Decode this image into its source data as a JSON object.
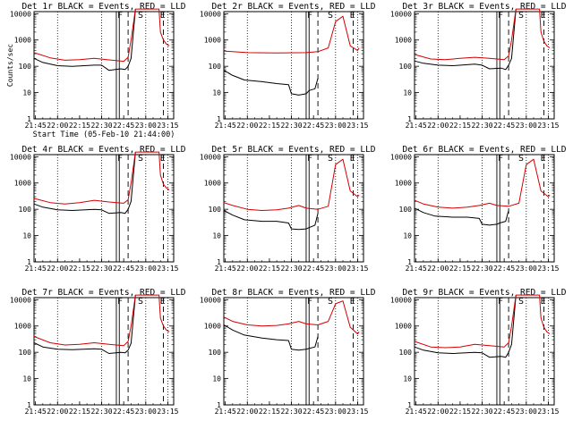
{
  "chart_data": [
    {
      "type": "line",
      "title": "Det 1r BLACK = Events, RED = LLD",
      "xlabel": "Start Time (05-Feb-10 21:44:00)",
      "ylabel": "Counts/sec",
      "x_ticks": [
        "21:45",
        "22:00",
        "22:15",
        "22:30",
        "22:45",
        "23:00",
        "23:15"
      ],
      "y_ticks": [
        "1",
        "10",
        "100",
        "1000",
        "10000"
      ],
      "y_scale": "log",
      "ylim": [
        1,
        12000
      ],
      "markers": [
        "F",
        "S",
        "E"
      ],
      "series": [
        {
          "color": "#000000",
          "x": [
            "21:44",
            "21:50",
            "22:00",
            "22:10",
            "22:25",
            "22:30",
            "22:35",
            "22:43",
            "22:46",
            "22:48",
            "22:50",
            "22:53"
          ],
          "y": [
            200,
            140,
            105,
            100,
            110,
            110,
            70,
            80,
            75,
            100,
            200,
            15000
          ]
        },
        {
          "color": "#d40000",
          "x": [
            "21:44",
            "21:55",
            "22:05",
            "22:15",
            "22:25",
            "22:35",
            "22:45",
            "22:48",
            "22:50",
            "22:53",
            "23:09",
            "23:10",
            "23:12",
            "23:14",
            "23:16"
          ],
          "y": [
            330,
            210,
            170,
            180,
            200,
            175,
            155,
            220,
            1000,
            15000,
            15000,
            2000,
            1000,
            700,
            600
          ]
        }
      ]
    },
    {
      "type": "line",
      "title": "Det 2r BLACK = Events, RED = LLD",
      "xlabel": "",
      "ylabel": "",
      "x_ticks": [
        "21:45",
        "22:00",
        "22:15",
        "22:30",
        "22:45",
        "23:00",
        "23:15"
      ],
      "y_ticks": [
        "1",
        "10",
        "100",
        "1000",
        "10000"
      ],
      "y_scale": "log",
      "ylim": [
        1,
        12000
      ],
      "markers": [
        "F",
        "S",
        "E"
      ],
      "series": [
        {
          "color": "#000000",
          "x": [
            "21:44",
            "21:50",
            "21:58",
            "22:10",
            "22:20",
            "22:28",
            "22:30",
            "22:35",
            "22:40",
            "22:42",
            "22:46",
            "22:48"
          ],
          "y": [
            70,
            45,
            30,
            26,
            22,
            20,
            9,
            8,
            9,
            12,
            14,
            35
          ]
        },
        {
          "color": "#d40000",
          "x": [
            "21:44",
            "22:00",
            "22:20",
            "22:40",
            "22:48",
            "22:55",
            "23:00",
            "23:05",
            "23:10",
            "23:15",
            "23:16"
          ],
          "y": [
            380,
            330,
            320,
            330,
            360,
            500,
            5000,
            8000,
            600,
            400,
            500
          ]
        }
      ]
    },
    {
      "type": "line",
      "title": "Det 3r BLACK = Events, RED = LLD",
      "xlabel": "",
      "ylabel": "",
      "x_ticks": [
        "21:45",
        "22:00",
        "22:15",
        "22:30",
        "22:45",
        "23:00",
        "23:15"
      ],
      "y_ticks": [
        "1",
        "10",
        "100",
        "1000",
        "10000"
      ],
      "y_scale": "log",
      "ylim": [
        1,
        12000
      ],
      "markers": [
        "F",
        "S",
        "E"
      ],
      "series": [
        {
          "color": "#000000",
          "x": [
            "21:44",
            "21:50",
            "22:00",
            "22:10",
            "22:25",
            "22:30",
            "22:35",
            "22:43",
            "22:46",
            "22:48",
            "22:50",
            "22:53"
          ],
          "y": [
            160,
            130,
            110,
            105,
            120,
            110,
            80,
            85,
            75,
            110,
            200,
            15000
          ]
        },
        {
          "color": "#d40000",
          "x": [
            "21:44",
            "21:55",
            "22:05",
            "22:15",
            "22:25",
            "22:35",
            "22:45",
            "22:48",
            "22:50",
            "22:53",
            "23:09",
            "23:10",
            "23:12",
            "23:14",
            "23:16"
          ],
          "y": [
            280,
            190,
            180,
            200,
            220,
            200,
            180,
            250,
            1000,
            15000,
            15000,
            2000,
            900,
            600,
            500
          ]
        }
      ]
    },
    {
      "type": "line",
      "title": "Det 4r BLACK = Events, RED = LLD",
      "xlabel": "",
      "ylabel": "",
      "x_ticks": [
        "21:45",
        "22:00",
        "22:15",
        "22:30",
        "22:45",
        "23:00",
        "23:15"
      ],
      "y_ticks": [
        "1",
        "10",
        "100",
        "1000",
        "10000"
      ],
      "y_scale": "log",
      "ylim": [
        1,
        12000
      ],
      "markers": [
        "F",
        "S",
        "E"
      ],
      "series": [
        {
          "color": "#000000",
          "x": [
            "21:44",
            "21:50",
            "22:00",
            "22:10",
            "22:25",
            "22:30",
            "22:35",
            "22:43",
            "22:46",
            "22:48",
            "22:50",
            "22:53"
          ],
          "y": [
            160,
            120,
            95,
            90,
            100,
            95,
            70,
            75,
            70,
            100,
            200,
            15000
          ]
        },
        {
          "color": "#d40000",
          "x": [
            "21:44",
            "21:55",
            "22:05",
            "22:15",
            "22:25",
            "22:35",
            "22:45",
            "22:48",
            "22:50",
            "22:53",
            "23:09",
            "23:10",
            "23:12",
            "23:14",
            "23:16"
          ],
          "y": [
            260,
            180,
            160,
            180,
            220,
            190,
            170,
            230,
            1000,
            15000,
            15000,
            2000,
            900,
            650,
            550
          ]
        }
      ]
    },
    {
      "type": "line",
      "title": "Det 5r BLACK = Events, RED = LLD",
      "xlabel": "",
      "ylabel": "",
      "x_ticks": [
        "21:45",
        "22:00",
        "22:15",
        "22:30",
        "22:45",
        "23:00",
        "23:15"
      ],
      "y_ticks": [
        "1",
        "10",
        "100",
        "1000",
        "10000"
      ],
      "y_scale": "log",
      "ylim": [
        1,
        12000
      ],
      "markers": [
        "F",
        "S",
        "E"
      ],
      "series": [
        {
          "color": "#000000",
          "x": [
            "21:44",
            "21:50",
            "21:58",
            "22:10",
            "22:20",
            "22:28",
            "22:30",
            "22:35",
            "22:40",
            "22:42",
            "22:46",
            "22:48"
          ],
          "y": [
            90,
            60,
            40,
            35,
            35,
            30,
            18,
            17,
            18,
            20,
            25,
            70
          ]
        },
        {
          "color": "#d40000",
          "x": [
            "21:44",
            "21:50",
            "22:00",
            "22:10",
            "22:20",
            "22:28",
            "22:35",
            "22:40",
            "22:48",
            "22:55",
            "23:00",
            "23:05",
            "23:10",
            "23:15",
            "23:16"
          ],
          "y": [
            180,
            140,
            100,
            90,
            95,
            110,
            140,
            110,
            100,
            130,
            5000,
            8000,
            500,
            300,
            350
          ]
        }
      ]
    },
    {
      "type": "line",
      "title": "Det 6r BLACK = Events, RED = LLD",
      "xlabel": "",
      "ylabel": "",
      "x_ticks": [
        "21:45",
        "22:00",
        "22:15",
        "22:30",
        "22:45",
        "23:00",
        "23:15"
      ],
      "y_ticks": [
        "1",
        "10",
        "100",
        "1000",
        "10000"
      ],
      "y_scale": "log",
      "ylim": [
        1,
        12000
      ],
      "markers": [
        "F",
        "S",
        "E"
      ],
      "series": [
        {
          "color": "#000000",
          "x": [
            "21:44",
            "21:50",
            "21:58",
            "22:10",
            "22:20",
            "22:28",
            "22:30",
            "22:35",
            "22:40",
            "22:42",
            "22:46",
            "22:48"
          ],
          "y": [
            110,
            75,
            55,
            50,
            50,
            45,
            27,
            25,
            27,
            30,
            35,
            90
          ]
        },
        {
          "color": "#d40000",
          "x": [
            "21:44",
            "21:50",
            "22:00",
            "22:10",
            "22:20",
            "22:28",
            "22:35",
            "22:40",
            "22:48",
            "22:55",
            "23:00",
            "23:05",
            "23:10",
            "23:15",
            "23:16"
          ],
          "y": [
            220,
            160,
            120,
            110,
            120,
            140,
            170,
            140,
            130,
            170,
            5000,
            8000,
            500,
            300,
            350
          ]
        }
      ]
    },
    {
      "type": "line",
      "title": "Det 7r BLACK = Events, RED = LLD",
      "xlabel": "",
      "ylabel": "",
      "x_ticks": [
        "21:45",
        "22:00",
        "22:15",
        "22:30",
        "22:45",
        "23:00",
        "23:15"
      ],
      "y_ticks": [
        "1",
        "10",
        "100",
        "1000",
        "10000"
      ],
      "y_scale": "log",
      "ylim": [
        1,
        12000
      ],
      "markers": [
        "F",
        "S",
        "E"
      ],
      "series": [
        {
          "color": "#000000",
          "x": [
            "21:44",
            "21:50",
            "22:00",
            "22:10",
            "22:25",
            "22:30",
            "22:35",
            "22:43",
            "22:46",
            "22:48",
            "22:50",
            "22:53"
          ],
          "y": [
            230,
            160,
            130,
            125,
            135,
            130,
            90,
            100,
            95,
            120,
            220,
            15000
          ]
        },
        {
          "color": "#d40000",
          "x": [
            "21:44",
            "21:55",
            "22:05",
            "22:15",
            "22:25",
            "22:35",
            "22:45",
            "22:48",
            "22:50",
            "22:53",
            "23:09",
            "23:10",
            "23:12",
            "23:14",
            "23:16"
          ],
          "y": [
            400,
            230,
            190,
            200,
            230,
            200,
            180,
            260,
            1000,
            15000,
            15000,
            2000,
            1000,
            700,
            600
          ]
        }
      ]
    },
    {
      "type": "line",
      "title": "Det 8r BLACK = Events, RED = LLD",
      "xlabel": "",
      "ylabel": "",
      "x_ticks": [
        "21:45",
        "22:00",
        "22:15",
        "22:30",
        "22:45",
        "23:00",
        "23:15"
      ],
      "y_ticks": [
        "1",
        "10",
        "100",
        "1000",
        "10000"
      ],
      "y_scale": "log",
      "ylim": [
        1,
        12000
      ],
      "markers": [
        "F",
        "S",
        "E"
      ],
      "series": [
        {
          "color": "#000000",
          "x": [
            "21:44",
            "21:50",
            "21:58",
            "22:10",
            "22:20",
            "22:28",
            "22:30",
            "22:35",
            "22:40",
            "22:42",
            "22:46",
            "22:48"
          ],
          "y": [
            1100,
            700,
            450,
            350,
            300,
            280,
            130,
            120,
            130,
            140,
            160,
            400
          ]
        },
        {
          "color": "#d40000",
          "x": [
            "21:44",
            "21:50",
            "22:00",
            "22:10",
            "22:20",
            "22:28",
            "22:35",
            "22:40",
            "22:48",
            "22:55",
            "23:00",
            "23:05",
            "23:10",
            "23:15",
            "23:16"
          ],
          "y": [
            2200,
            1500,
            1100,
            1000,
            1050,
            1200,
            1500,
            1200,
            1100,
            1500,
            7000,
            9000,
            900,
            500,
            600
          ]
        }
      ]
    },
    {
      "type": "line",
      "title": "Det 9r BLACK = Events, RED = LLD",
      "xlabel": "",
      "ylabel": "",
      "x_ticks": [
        "21:45",
        "22:00",
        "22:15",
        "22:30",
        "22:45",
        "23:00",
        "23:15"
      ],
      "y_ticks": [
        "1",
        "10",
        "100",
        "1000",
        "10000"
      ],
      "y_scale": "log",
      "ylim": [
        1,
        12000
      ],
      "markers": [
        "F",
        "S",
        "E"
      ],
      "series": [
        {
          "color": "#000000",
          "x": [
            "21:44",
            "21:50",
            "22:00",
            "22:10",
            "22:25",
            "22:30",
            "22:35",
            "22:43",
            "22:46",
            "22:48",
            "22:50",
            "22:53"
          ],
          "y": [
            160,
            120,
            95,
            90,
            100,
            95,
            65,
            70,
            65,
            100,
            200,
            15000
          ]
        },
        {
          "color": "#d40000",
          "x": [
            "21:44",
            "21:55",
            "22:05",
            "22:15",
            "22:25",
            "22:35",
            "22:45",
            "22:48",
            "22:50",
            "22:53",
            "23:09",
            "23:10",
            "23:12",
            "23:14",
            "23:16"
          ],
          "y": [
            260,
            160,
            150,
            160,
            200,
            180,
            160,
            230,
            1000,
            15000,
            15000,
            2000,
            900,
            600,
            500
          ]
        }
      ]
    }
  ]
}
